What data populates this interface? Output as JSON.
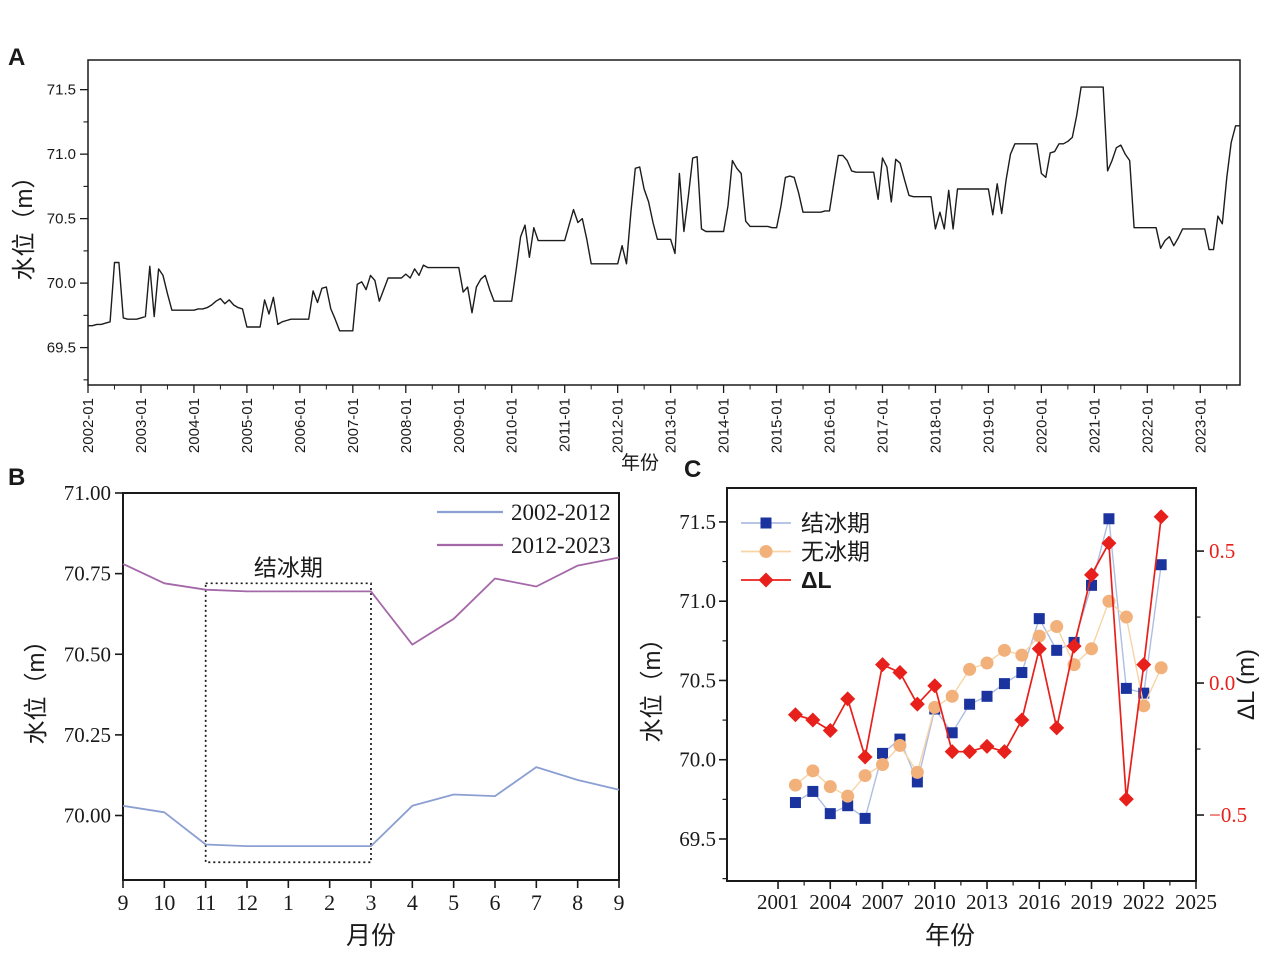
{
  "panels": {
    "a": "A",
    "b": "B",
    "c": "C"
  },
  "chart_data": [
    {
      "id": "A",
      "type": "line",
      "title": "",
      "xlabel": "年份",
      "ylabel": "水位（m）",
      "xlim_years": [
        2002.0,
        2023.75
      ],
      "xticks_years": [
        2002,
        2003,
        2004,
        2005,
        2006,
        2007,
        2008,
        2009,
        2010,
        2011,
        2012,
        2013,
        2014,
        2015,
        2016,
        2017,
        2018,
        2019,
        2020,
        2021,
        2022,
        2023
      ],
      "xtick_labels": [
        "2002-01",
        "2003-01",
        "2004-01",
        "2005-01",
        "2006-01",
        "2007-01",
        "2008-01",
        "2009-01",
        "2010-01",
        "2011-01",
        "2012-01",
        "2013-01",
        "2014-01",
        "2015-01",
        "2016-01",
        "2017-01",
        "2018-01",
        "2019-01",
        "2020-01",
        "2021-01",
        "2022-01",
        "2023-01"
      ],
      "ylim": [
        69.21,
        71.73
      ],
      "yticks": [
        69.5,
        70.0,
        70.5,
        71.0,
        71.5
      ],
      "ytick_labels": [
        "69.5",
        "70.0",
        "70.5",
        "71.0",
        "71.5"
      ],
      "line_color": "#1c1c1c",
      "values_monthly": [
        69.67,
        69.67,
        69.68,
        69.68,
        69.69,
        69.7,
        70.16,
        70.16,
        69.73,
        69.72,
        69.72,
        69.72,
        69.73,
        69.74,
        70.13,
        69.74,
        70.11,
        70.06,
        69.92,
        69.79,
        69.79,
        69.79,
        69.79,
        69.79,
        69.79,
        69.8,
        69.8,
        69.81,
        69.83,
        69.86,
        69.88,
        69.84,
        69.87,
        69.83,
        69.81,
        69.8,
        69.66,
        69.66,
        69.66,
        69.66,
        69.87,
        69.76,
        69.89,
        69.68,
        69.7,
        69.71,
        69.72,
        69.72,
        69.72,
        69.72,
        69.72,
        69.94,
        69.85,
        69.96,
        69.97,
        69.8,
        69.72,
        69.63,
        69.63,
        69.63,
        69.63,
        69.99,
        70.01,
        69.95,
        70.06,
        70.02,
        69.86,
        69.95,
        70.04,
        70.04,
        70.04,
        70.04,
        70.07,
        70.04,
        70.11,
        70.06,
        70.14,
        70.12,
        70.12,
        70.12,
        70.12,
        70.12,
        70.12,
        70.12,
        70.12,
        69.93,
        69.97,
        69.77,
        69.97,
        70.03,
        70.06,
        69.95,
        69.86,
        69.86,
        69.86,
        69.86,
        69.86,
        70.1,
        70.36,
        70.45,
        70.2,
        70.43,
        70.33,
        70.33,
        70.33,
        70.33,
        70.33,
        70.33,
        70.33,
        70.45,
        70.57,
        70.47,
        70.5,
        70.34,
        70.15,
        70.15,
        70.15,
        70.15,
        70.15,
        70.15,
        70.15,
        70.29,
        70.15,
        70.55,
        70.89,
        70.9,
        70.73,
        70.63,
        70.47,
        70.34,
        70.34,
        70.34,
        70.34,
        70.23,
        70.85,
        70.4,
        70.67,
        70.97,
        70.98,
        70.42,
        70.4,
        70.4,
        70.4,
        70.4,
        70.4,
        70.6,
        70.95,
        70.89,
        70.85,
        70.48,
        70.44,
        70.44,
        70.44,
        70.44,
        70.44,
        70.43,
        70.43,
        70.6,
        70.82,
        70.83,
        70.82,
        70.7,
        70.55,
        70.55,
        70.55,
        70.55,
        70.55,
        70.56,
        70.56,
        70.78,
        70.99,
        70.99,
        70.95,
        70.87,
        70.86,
        70.86,
        70.86,
        70.86,
        70.86,
        70.65,
        70.97,
        70.9,
        70.63,
        70.96,
        70.93,
        70.8,
        70.68,
        70.67,
        70.67,
        70.67,
        70.67,
        70.67,
        70.42,
        70.55,
        70.42,
        70.72,
        70.42,
        70.73,
        70.73,
        70.73,
        70.73,
        70.73,
        70.73,
        70.73,
        70.73,
        70.53,
        70.77,
        70.54,
        70.8,
        71.0,
        71.08,
        71.08,
        71.08,
        71.08,
        71.08,
        71.08,
        70.85,
        70.82,
        71.01,
        71.02,
        71.08,
        71.08,
        71.1,
        71.13,
        71.3,
        71.52,
        71.52,
        71.52,
        71.52,
        71.52,
        71.52,
        70.87,
        70.95,
        71.05,
        71.07,
        71.0,
        70.95,
        70.43,
        70.43,
        70.43,
        70.43,
        70.43,
        70.43,
        70.27,
        70.33,
        70.36,
        70.29,
        70.35,
        70.42,
        70.42,
        70.42,
        70.42,
        70.42,
        70.42,
        70.26,
        70.26,
        70.52,
        70.46,
        70.82,
        71.09,
        71.22,
        71.22
      ]
    },
    {
      "id": "B",
      "type": "line",
      "xlabel": "月份",
      "ylabel": "水位（m）",
      "categories": [
        "9",
        "10",
        "11",
        "12",
        "1",
        "2",
        "3",
        "4",
        "5",
        "6",
        "7",
        "8",
        "9"
      ],
      "ylim": [
        69.8,
        71.0
      ],
      "yticks": [
        70.0,
        70.25,
        70.5,
        70.75,
        71.0
      ],
      "ytick_labels": [
        "70.00",
        "70.25",
        "70.50",
        "70.75",
        "71.00"
      ],
      "series": [
        {
          "name": "2002-2012",
          "color": "#8B9FD2",
          "values": [
            70.03,
            70.01,
            69.91,
            69.905,
            69.905,
            69.905,
            69.905,
            70.03,
            70.065,
            70.06,
            70.15,
            70.11,
            70.08
          ]
        },
        {
          "name": "2012-2023",
          "color": "#A468A8",
          "values": [
            70.78,
            70.72,
            70.7,
            70.695,
            70.695,
            70.695,
            70.695,
            70.53,
            70.61,
            70.735,
            70.71,
            70.775,
            70.8
          ]
        }
      ],
      "annotation": {
        "label": "结冰期",
        "x_from_index": 2,
        "x_to_index": 6,
        "y_from": 69.855,
        "y_to": 70.72
      },
      "legend_position": "top-right"
    },
    {
      "id": "C",
      "type": "scatter-line",
      "xlabel": "年份",
      "ylabel_left": "水位（m）",
      "ylabel_right": "ΔL (m)",
      "x_years": [
        2002,
        2003,
        2004,
        2005,
        2006,
        2007,
        2008,
        2009,
        2010,
        2011,
        2012,
        2013,
        2014,
        2015,
        2016,
        2017,
        2018,
        2019,
        2020,
        2021,
        2022,
        2023
      ],
      "xlim": [
        1998.07,
        2025.0
      ],
      "xticks": [
        2001,
        2004,
        2007,
        2010,
        2013,
        2016,
        2019,
        2022,
        2025
      ],
      "ylim_left": [
        69.235,
        71.714
      ],
      "yticks_left": [
        69.5,
        70.0,
        70.5,
        71.0,
        71.5
      ],
      "ytick_labels_left": [
        "69.5",
        "70.0",
        "70.5",
        "71.0",
        "71.5"
      ],
      "ylim_right": [
        -0.75,
        0.739
      ],
      "yticks_right": [
        -0.5,
        0.0,
        0.5
      ],
      "ytick_labels_right": [
        "−0.5",
        "0.0",
        "0.5"
      ],
      "right_axis_color": "#E8201B",
      "series": [
        {
          "name": "结冰期",
          "axis": "left",
          "marker": "square",
          "emphasis": false,
          "marker_color": "#1A339E",
          "line_color": "#AEBDE2",
          "values": [
            69.73,
            69.8,
            69.66,
            69.71,
            69.63,
            70.04,
            70.13,
            69.86,
            70.32,
            70.17,
            70.35,
            70.4,
            70.48,
            70.55,
            70.89,
            70.69,
            70.74,
            71.1,
            71.52,
            70.45,
            70.42,
            71.23
          ]
        },
        {
          "name": "无冰期",
          "axis": "left",
          "marker": "circle",
          "emphasis": false,
          "marker_color": "#F2B17B",
          "line_color": "#F7D4A6",
          "values": [
            69.84,
            69.93,
            69.83,
            69.77,
            69.9,
            69.97,
            70.09,
            69.92,
            70.33,
            70.4,
            70.57,
            70.61,
            70.69,
            70.66,
            70.78,
            70.84,
            70.6,
            70.7,
            71.0,
            70.9,
            70.34,
            70.58
          ]
        },
        {
          "name": "ΔL",
          "axis": "right",
          "marker": "diamond",
          "emphasis": true,
          "marker_color": "#E8201B",
          "line_color": "#E8201B",
          "values": [
            -0.12,
            -0.14,
            -0.18,
            -0.06,
            -0.28,
            0.07,
            0.04,
            -0.08,
            -0.01,
            -0.26,
            -0.26,
            -0.24,
            -0.26,
            -0.14,
            0.13,
            -0.17,
            0.14,
            0.41,
            0.53,
            -0.44,
            0.07,
            0.63
          ]
        }
      ],
      "legend_position": "top-left"
    }
  ]
}
